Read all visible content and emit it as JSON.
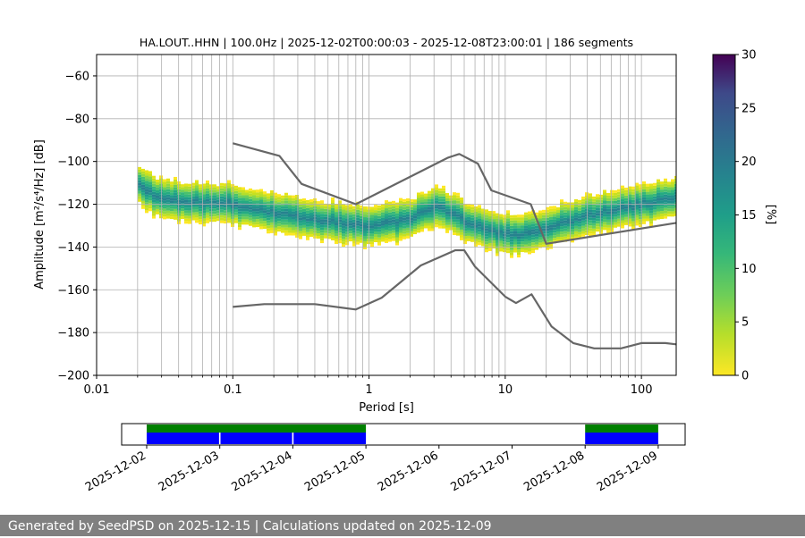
{
  "chart_data": [
    {
      "type": "heatmap",
      "title": "HA.LOUT..HHN | 100.0Hz | 2025-12-02T00:00:03 - 2025-12-08T23:00:01 | 186 segments",
      "xlabel": "Period [s]",
      "ylabel": "Amplitude [m²/s⁴/Hz] [dB]",
      "x_scale": "log",
      "xlim": [
        0.01,
        180
      ],
      "ylim": [
        -200,
        -50
      ],
      "x_ticks": [
        "0.01",
        "0.1",
        "1",
        "10",
        "100"
      ],
      "y_ticks": [
        "−60",
        "−80",
        "−100",
        "−120",
        "−140",
        "−160",
        "−180",
        "−200"
      ],
      "grid": true,
      "colorbar": {
        "label": "[%]",
        "ticks": [
          "0",
          "5",
          "10",
          "15",
          "20",
          "25",
          "30"
        ],
        "range": [
          0,
          30
        ],
        "colormap": "viridis_r"
      },
      "density_min_period": 0.02,
      "density_center_db": [
        {
          "period": 0.02,
          "db": -110
        },
        {
          "period": 0.03,
          "db": -118
        },
        {
          "period": 0.05,
          "db": -119
        },
        {
          "period": 0.1,
          "db": -120
        },
        {
          "period": 0.2,
          "db": -124
        },
        {
          "period": 0.3,
          "db": -126
        },
        {
          "period": 0.5,
          "db": -128
        },
        {
          "period": 1,
          "db": -130
        },
        {
          "period": 2,
          "db": -127
        },
        {
          "period": 3,
          "db": -121
        },
        {
          "period": 4,
          "db": -124
        },
        {
          "period": 5,
          "db": -128
        },
        {
          "period": 7,
          "db": -131
        },
        {
          "period": 10,
          "db": -134
        },
        {
          "period": 15,
          "db": -134
        },
        {
          "period": 20,
          "db": -131
        },
        {
          "period": 30,
          "db": -128
        },
        {
          "period": 50,
          "db": -124
        },
        {
          "period": 100,
          "db": -120
        },
        {
          "period": 180,
          "db": -117
        }
      ],
      "reference_curves": [
        {
          "points": [
            [
              0.1,
              -91.5
            ],
            [
              0.22,
              -97.4
            ],
            [
              0.32,
              -110.5
            ],
            [
              0.8,
              -120
            ],
            [
              3.8,
              -98.2
            ],
            [
              4.6,
              -96.5
            ],
            [
              6.3,
              -101
            ],
            [
              7.9,
              -113.5
            ],
            [
              15.4,
              -120
            ],
            [
              20,
              -138.5
            ],
            [
              180,
              -128.7
            ]
          ]
        },
        {
          "points": [
            [
              0.1,
              -168.0
            ],
            [
              0.17,
              -166.7
            ],
            [
              0.4,
              -166.7
            ],
            [
              0.8,
              -169.2
            ],
            [
              1.24,
              -163.7
            ],
            [
              2.4,
              -148.6
            ],
            [
              4.3,
              -141.5
            ],
            [
              5.0,
              -141.5
            ],
            [
              6.0,
              -149.2
            ],
            [
              10.0,
              -163.2
            ],
            [
              12.0,
              -166.2
            ],
            [
              15.6,
              -162.1
            ],
            [
              21.9,
              -177.2
            ],
            [
              31.6,
              -184.9
            ],
            [
              45.0,
              -187.4
            ],
            [
              70.8,
              -187.4
            ],
            [
              100.0,
              -184.9
            ],
            [
              150.0,
              -184.9
            ],
            [
              180.0,
              -185.5
            ]
          ]
        }
      ]
    },
    {
      "type": "timeline",
      "x_ticks": [
        "2025-12-02",
        "2025-12-03",
        "2025-12-04",
        "2025-12-05",
        "2025-12-06",
        "2025-12-07",
        "2025-12-08",
        "2025-12-09"
      ],
      "coverage_days": [
        [
          0,
          3
        ],
        [
          6,
          7
        ]
      ],
      "data_segment_days": [
        [
          0,
          0.99
        ],
        [
          1.01,
          1.99
        ],
        [
          2.01,
          3
        ],
        [
          6,
          7
        ]
      ],
      "colors": {
        "coverage": "#008000",
        "data": "#0000ff"
      }
    }
  ],
  "footer": "Generated by SeedPSD on 2025-12-15 | Calculations updated on 2025-12-09"
}
